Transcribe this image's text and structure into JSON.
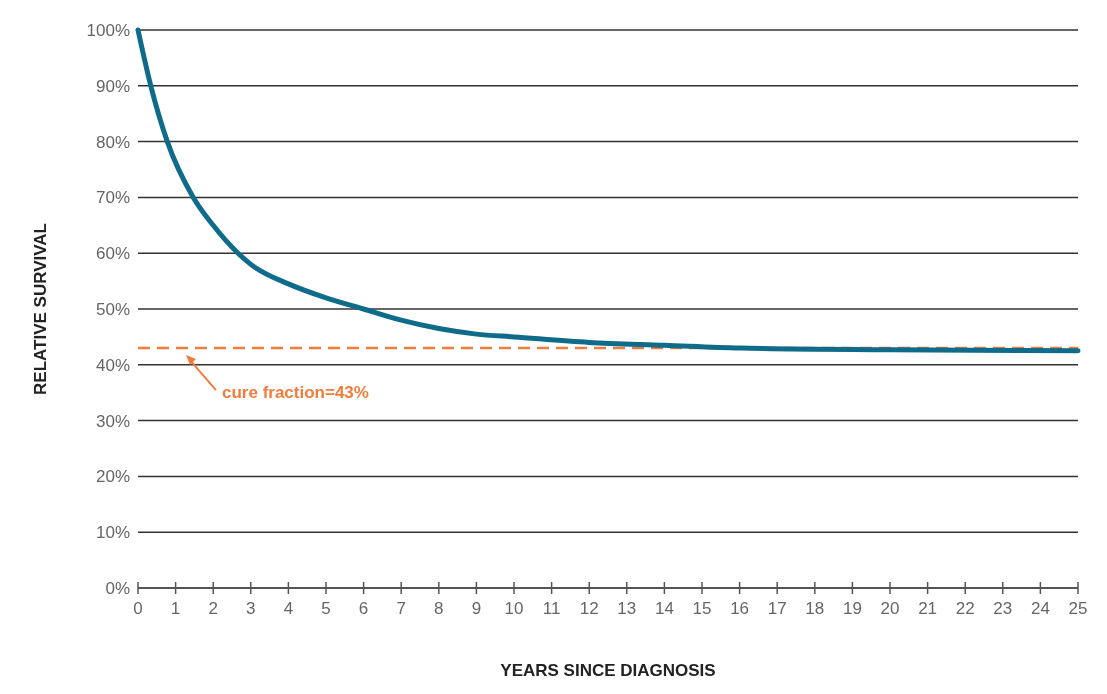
{
  "chart_data": {
    "type": "line",
    "xlabel": "YEARS SINCE DIAGNOSIS",
    "ylabel": "RELATIVE SURVIVAL",
    "xlim": [
      0,
      25
    ],
    "xticks": [
      0,
      1,
      2,
      3,
      4,
      5,
      6,
      7,
      8,
      9,
      10,
      11,
      12,
      13,
      14,
      15,
      16,
      17,
      18,
      19,
      20,
      21,
      22,
      23,
      24,
      25
    ],
    "ylim": [
      0,
      100
    ],
    "yticks": [
      {
        "value": 0,
        "label": "0%"
      },
      {
        "value": 10,
        "label": "10%"
      },
      {
        "value": 20,
        "label": "20%"
      },
      {
        "value": 30,
        "label": "30%"
      },
      {
        "value": 40,
        "label": "40%"
      },
      {
        "value": 50,
        "label": "50%"
      },
      {
        "value": 60,
        "label": "60%"
      },
      {
        "value": 70,
        "label": "70%"
      },
      {
        "value": 80,
        "label": "80%"
      },
      {
        "value": 90,
        "label": "90%"
      },
      {
        "value": 100,
        "label": "100%"
      }
    ],
    "grid": "y",
    "marker": "none",
    "line_style": "solid",
    "series": [
      {
        "color": "#0e6b8a",
        "x": [
          0,
          0.34,
          0.78,
          1.47,
          2,
          2.66,
          3,
          4,
          5,
          6,
          7,
          8,
          9,
          10,
          12,
          14,
          16,
          20,
          25
        ],
        "values": [
          100,
          90,
          80,
          70,
          65,
          60,
          58,
          54.5,
          52,
          50,
          48,
          46.5,
          45.5,
          45,
          44,
          43.5,
          43,
          42.7,
          42.5
        ]
      }
    ],
    "ref_lines": [
      {
        "axis": "y",
        "value": 43,
        "label": "cure fraction=43%",
        "color": "#f07d3c",
        "line_style": "dashed"
      }
    ]
  }
}
